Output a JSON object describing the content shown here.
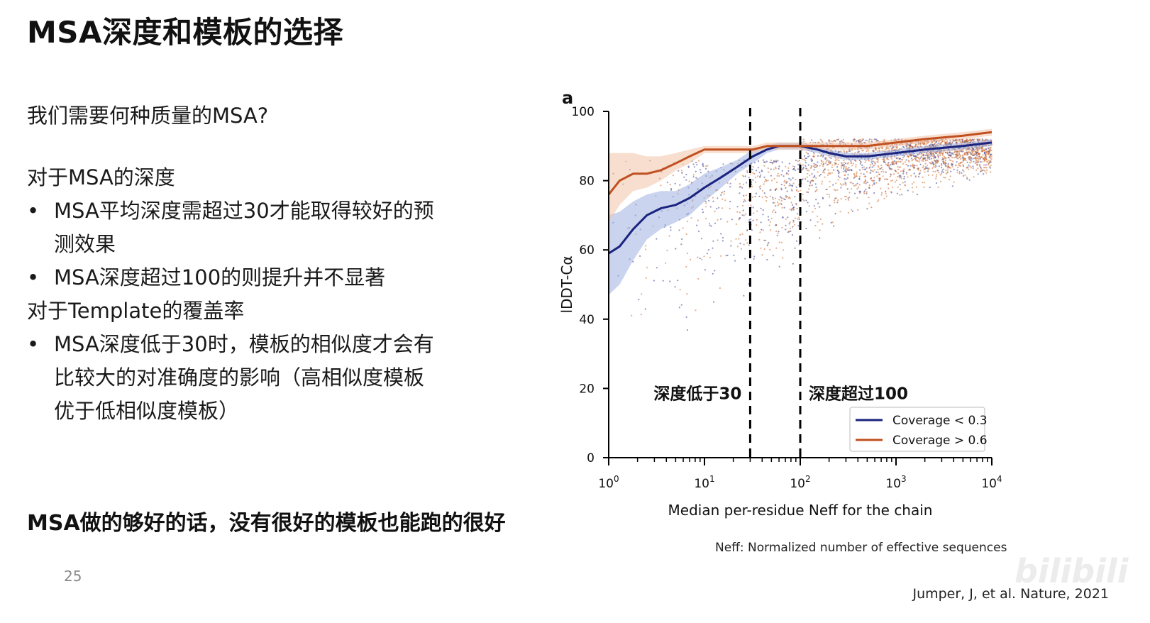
{
  "slide": {
    "title": "MSA深度和模板的选择",
    "question": "我们需要何种质量的MSA?",
    "section1_heading": "对于MSA的深度",
    "section1_bullet1_line1": "MSA平均深度需超过30才能取得较好的预",
    "section1_bullet1_line2": "测效果",
    "section1_bullet2": "MSA深度超过100的则提升并不显著",
    "section2_heading": "对于Template的覆盖率",
    "section2_bullet1_line1": "MSA深度低于30时，模板的相似度才会有",
    "section2_bullet1_line2": "比较大的对准确度的影响（高相似度模板",
    "section2_bullet1_line3": "优于低相似度模板）",
    "conclusion": "MSA做的够好的话，没有很好的模板也能跑的很好",
    "page_number": "25",
    "footnote": "Neff: Normalized number of effective sequences",
    "citation": "Jumper, J, et al. Nature, 2021",
    "watermark": "bilibili"
  },
  "chart_data": {
    "type": "line",
    "panel_label": "a",
    "xlabel": "Median per-residue Neff for the chain",
    "ylabel": "lDDT-Cα",
    "xscale": "log",
    "xlim": [
      1,
      10000
    ],
    "ylim": [
      0,
      100
    ],
    "x_ticks": [
      1,
      10,
      100,
      1000,
      10000
    ],
    "x_tick_labels": [
      {
        "base": "10",
        "exp": "0"
      },
      {
        "base": "10",
        "exp": "1"
      },
      {
        "base": "10",
        "exp": "2"
      },
      {
        "base": "10",
        "exp": "3"
      },
      {
        "base": "10",
        "exp": "4"
      }
    ],
    "y_ticks": [
      0,
      20,
      40,
      60,
      80,
      100
    ],
    "y_tick_labels": [
      "0",
      "20",
      "40",
      "60",
      "80",
      "100"
    ],
    "vlines": [
      30,
      100
    ],
    "annotations": [
      "深度低于30",
      "深度超过100"
    ],
    "legend_position": "bottom-right",
    "colors": {
      "low_coverage": "#1a237e",
      "high_coverage": "#c0501f",
      "low_band": "#9fb0e0",
      "high_band": "#f2c3a8",
      "dots_a": "#3a3f8f",
      "dots_b": "#d2692a"
    },
    "series": [
      {
        "name": "Coverage < 0.3",
        "x": [
          1,
          1.3,
          1.8,
          2.5,
          3.5,
          5,
          7,
          10,
          15,
          22,
          32,
          45,
          60,
          80,
          100,
          150,
          200,
          300,
          500,
          1000,
          2000,
          5000,
          10000
        ],
        "y": [
          59,
          61,
          66,
          70,
          72,
          73,
          75,
          78,
          81,
          84,
          87,
          89,
          90,
          90,
          90,
          89,
          88,
          87,
          87,
          88,
          89,
          90,
          91
        ],
        "band_low": [
          47,
          50,
          57,
          63,
          66,
          68,
          70,
          74,
          78,
          82,
          85,
          88,
          89,
          89,
          89,
          88,
          87,
          86,
          86,
          87,
          88,
          89,
          90
        ],
        "band_high": [
          70,
          71,
          74,
          76,
          77,
          77,
          79,
          82,
          84,
          86,
          89,
          90,
          91,
          91,
          91,
          90,
          89,
          88,
          88,
          89,
          90,
          91,
          92
        ]
      },
      {
        "name": "Coverage > 0.6",
        "x": [
          1,
          1.3,
          1.8,
          2.5,
          3.5,
          5,
          7,
          10,
          15,
          22,
          32,
          45,
          60,
          80,
          100,
          150,
          200,
          300,
          500,
          1000,
          2000,
          5000,
          10000
        ],
        "y": [
          76,
          80,
          82,
          82,
          83,
          85,
          87,
          89,
          89,
          89,
          89,
          90,
          90,
          90,
          90,
          90,
          90,
          90,
          90,
          91,
          92,
          93,
          94
        ],
        "band_low": [
          68,
          73,
          77,
          78,
          80,
          83,
          85,
          88,
          88,
          88,
          88,
          89,
          89,
          89,
          89,
          89,
          89,
          89,
          89,
          90,
          91,
          92,
          93
        ],
        "band_high": [
          88,
          88,
          88,
          87,
          87,
          88,
          89,
          90,
          90,
          90,
          90,
          91,
          91,
          91,
          91,
          91,
          91,
          91,
          91,
          92,
          93,
          94,
          95
        ]
      }
    ]
  }
}
